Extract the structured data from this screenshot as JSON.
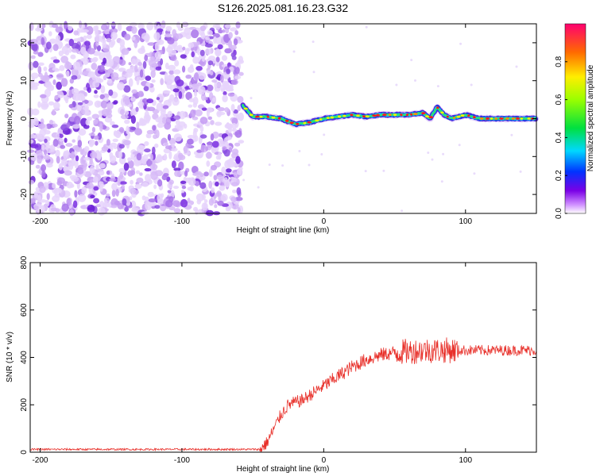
{
  "title": "S126.2025.081.16.23.G32",
  "chart_data": [
    {
      "type": "heatmap",
      "xlabel": "Height of straight line (km)",
      "ylabel": "Frequency (Hz)",
      "xlim": [
        -207,
        150
      ],
      "ylim": [
        -25,
        25
      ],
      "x_ticks": [
        -200,
        -100,
        0,
        100
      ],
      "y_ticks": [
        -20,
        -10,
        0,
        10,
        20
      ],
      "noise_region_x": [
        -207,
        -57
      ],
      "signal_start_x": -57,
      "signal_track": [
        {
          "x": -57,
          "y": 3.5
        },
        {
          "x": -50,
          "y": 0.5
        },
        {
          "x": -40,
          "y": 0.5
        },
        {
          "x": -30,
          "y": 0
        },
        {
          "x": -20,
          "y": -1.5
        },
        {
          "x": -10,
          "y": -1
        },
        {
          "x": 0,
          "y": 0
        },
        {
          "x": 10,
          "y": 0.5
        },
        {
          "x": 20,
          "y": 1
        },
        {
          "x": 30,
          "y": 0.5
        },
        {
          "x": 40,
          "y": 1
        },
        {
          "x": 50,
          "y": 1
        },
        {
          "x": 60,
          "y": 1
        },
        {
          "x": 70,
          "y": 1.5
        },
        {
          "x": 75,
          "y": 0
        },
        {
          "x": 80,
          "y": 3
        },
        {
          "x": 85,
          "y": 1
        },
        {
          "x": 90,
          "y": 0
        },
        {
          "x": 100,
          "y": 1
        },
        {
          "x": 110,
          "y": 0
        },
        {
          "x": 120,
          "y": 0
        },
        {
          "x": 130,
          "y": 0
        },
        {
          "x": 150,
          "y": 0
        }
      ],
      "colorbar": {
        "label": "Normalized spectral amplitude",
        "range": [
          0,
          1
        ],
        "ticks": [
          "0.0",
          "0.2",
          "0.4",
          "0.6",
          "0.8"
        ]
      }
    },
    {
      "type": "line",
      "xlabel": "Height of straight line (km)",
      "ylabel": "SNR (10 * v/v)",
      "xlim": [
        -207,
        150
      ],
      "ylim": [
        0,
        800
      ],
      "x_ticks": [
        -200,
        -100,
        0,
        100
      ],
      "y_ticks": [
        0,
        200,
        400,
        600,
        800
      ],
      "colors": {
        "line": "#e8302a"
      },
      "series": [
        {
          "x": [
            -207,
            -150,
            -100,
            -60,
            -45,
            -40,
            -35,
            -30,
            -25,
            -20,
            -15,
            -10,
            -5,
            0,
            10,
            20,
            30,
            40,
            50,
            60,
            70,
            80,
            90,
            100,
            110,
            120,
            130,
            140,
            150
          ],
          "values": [
            12,
            12,
            12,
            12,
            12,
            40,
            100,
            160,
            200,
            210,
            220,
            240,
            260,
            280,
            320,
            360,
            390,
            410,
            420,
            425,
            430,
            430,
            430,
            430,
            430,
            430,
            430,
            430,
            430
          ]
        }
      ]
    }
  ]
}
